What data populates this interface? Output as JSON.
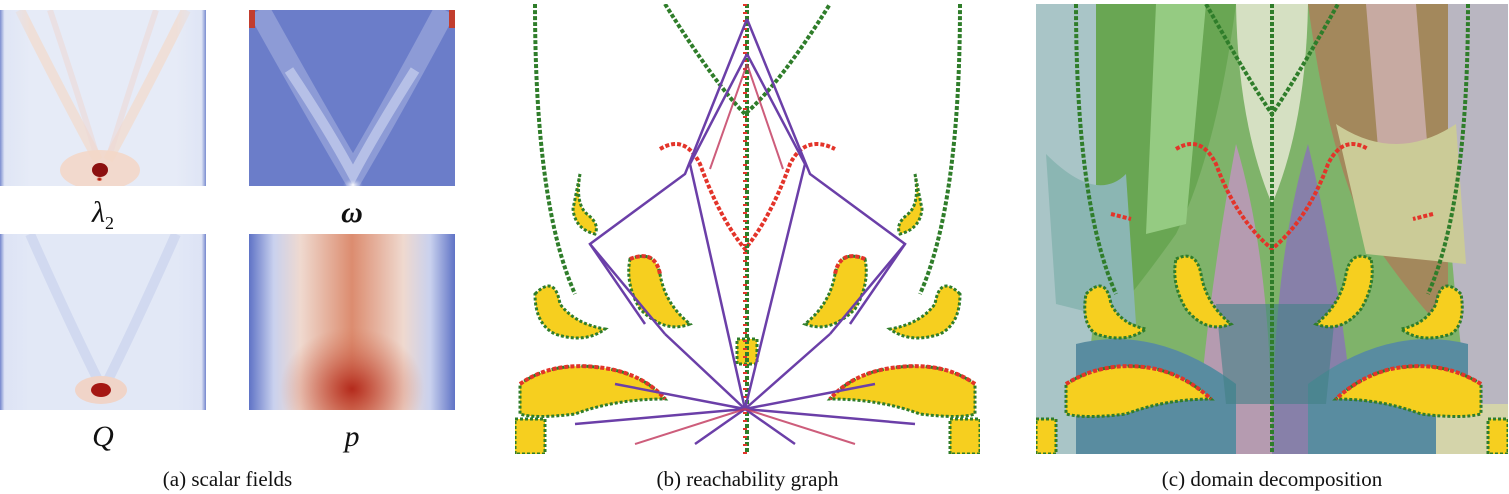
{
  "panel_a": {
    "caption": "(a)  scalar fields",
    "fields": [
      {
        "symbol": "λ",
        "subscript": "2"
      },
      {
        "symbol": "ω",
        "subscript": ""
      },
      {
        "symbol": "Q",
        "subscript": ""
      },
      {
        "symbol": "p",
        "subscript": ""
      }
    ]
  },
  "panel_b": {
    "caption": "(b)  reachability graph"
  },
  "panel_c": {
    "caption": "(c)  domain decomposition"
  },
  "colors": {
    "field_low": "#5a6fc2",
    "field_mid": "#eef1fa",
    "field_high": "#b0221a",
    "region_fill": "#f6cf1f",
    "boundary_green": "#2f7d2a",
    "boundary_red": "#e3342a",
    "edge_purple": "#6b3fa8"
  }
}
